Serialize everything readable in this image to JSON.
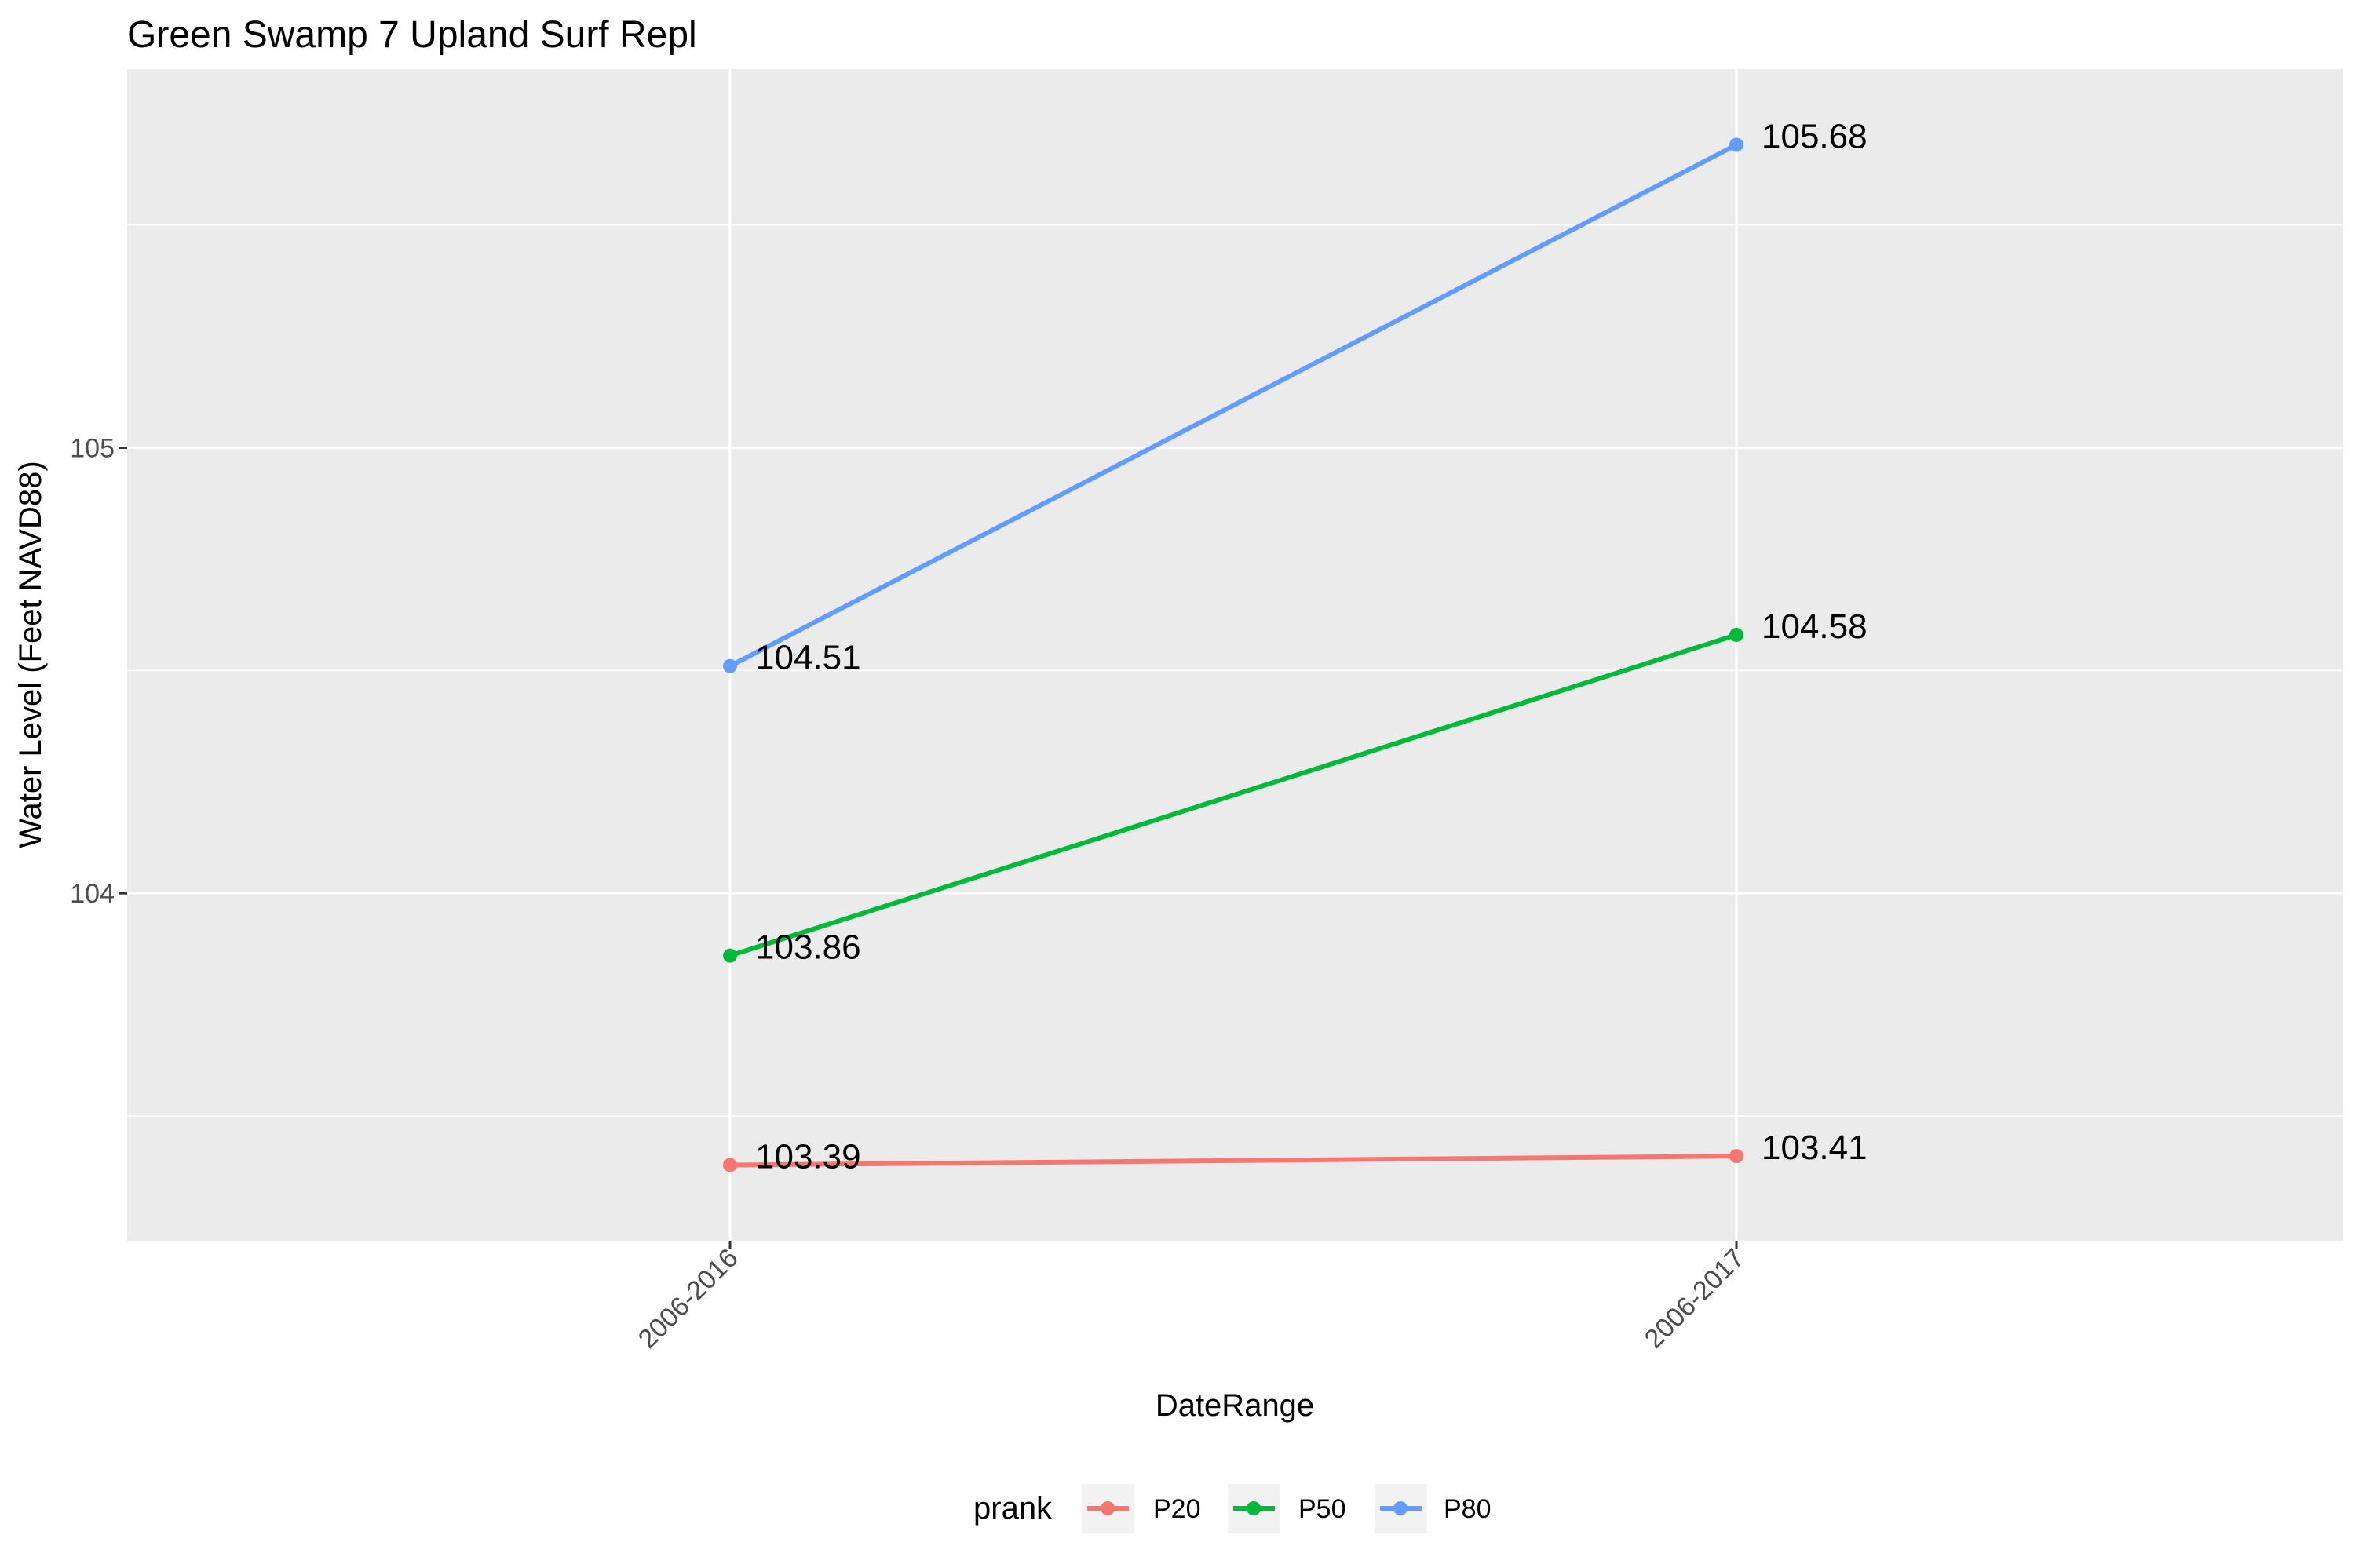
{
  "chart_data": {
    "type": "line",
    "title": "Green Swamp 7 Upland Surf Repl",
    "xlabel": "DateRange",
    "ylabel": "Water Level (Feet NAVD88)",
    "categories": [
      "2006-2016",
      "2006-2017"
    ],
    "y_ticks": [
      104,
      105
    ],
    "y_tick_labels": [
      "104",
      "105"
    ],
    "ylim": [
      103.22,
      105.85
    ],
    "grid": true,
    "legend": {
      "title": "prank",
      "position": "bottom",
      "entries": [
        "P20",
        "P50",
        "P80"
      ]
    },
    "series": [
      {
        "name": "P20",
        "color": "#F8766D",
        "values": [
          103.39,
          103.41
        ],
        "labels": [
          "103.39",
          "103.41"
        ]
      },
      {
        "name": "P50",
        "color": "#00BA38",
        "values": [
          103.86,
          104.58
        ],
        "labels": [
          "103.86",
          "104.58"
        ]
      },
      {
        "name": "P80",
        "color": "#619CFF",
        "values": [
          104.51,
          105.68
        ],
        "labels": [
          "104.51",
          "105.68"
        ]
      }
    ]
  }
}
